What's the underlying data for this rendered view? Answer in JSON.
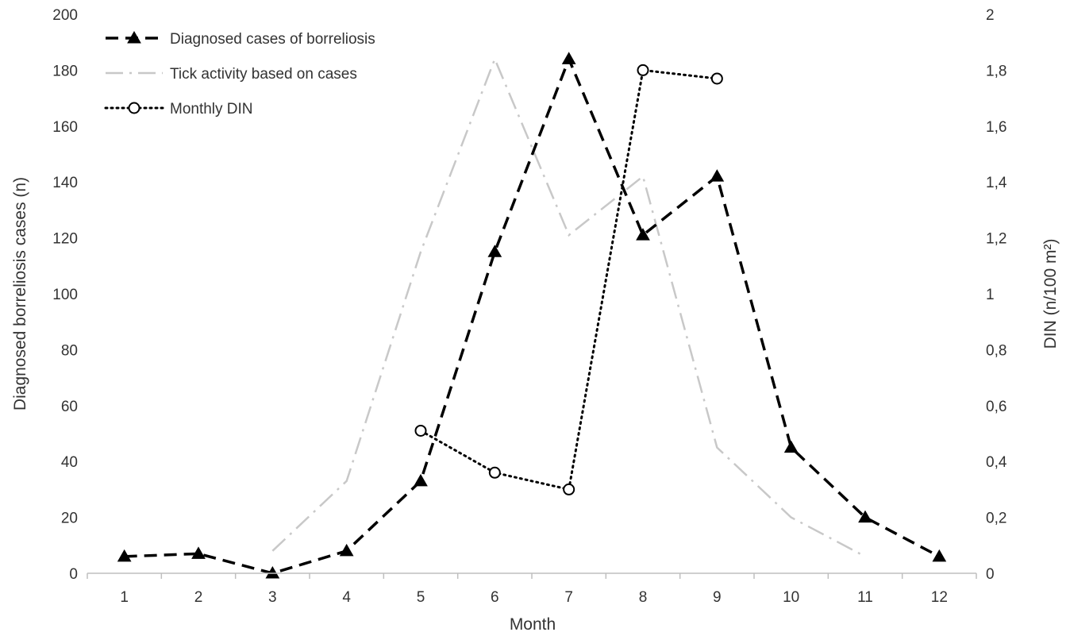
{
  "chart_data": {
    "type": "line",
    "title": "",
    "xlabel": "Month",
    "ylabel_left": "Diagnosed borreliosis cases (n)",
    "ylabel_right": "DIN (n/100 m²)",
    "categories": [
      "1",
      "2",
      "3",
      "4",
      "5",
      "6",
      "7",
      "8",
      "9",
      "10",
      "11",
      "12"
    ],
    "ylim_left": [
      0,
      200
    ],
    "ylim_right": [
      0,
      2
    ],
    "yticks_left": [
      "0",
      "20",
      "40",
      "60",
      "80",
      "100",
      "120",
      "140",
      "160",
      "180",
      "200"
    ],
    "yticks_right": [
      "0",
      "0,2",
      "0,4",
      "0,6",
      "0,8",
      "1",
      "1,2",
      "1,4",
      "1,6",
      "1,8",
      "2"
    ],
    "grid": false,
    "legend_position": "top-left",
    "series": [
      {
        "name": "Diagnosed cases of borreliosis",
        "axis": "left",
        "color": "#000000",
        "style": "dashed",
        "marker": "triangle",
        "x": [
          1,
          2,
          3,
          4,
          5,
          6,
          7,
          8,
          9,
          10,
          11,
          12
        ],
        "values": [
          6,
          7,
          0,
          8,
          33,
          115,
          184,
          121,
          142,
          45,
          20,
          6
        ]
      },
      {
        "name": "Tick activity based on cases",
        "axis": "left",
        "color": "#c8c8c8",
        "style": "dash-dot",
        "marker": "none",
        "x": [
          3,
          4,
          5,
          6,
          7,
          8,
          9,
          10,
          11
        ],
        "values": [
          8,
          33,
          115,
          184,
          121,
          142,
          45,
          20,
          6
        ]
      },
      {
        "name": "Monthly DIN",
        "axis": "right",
        "color": "#000000",
        "style": "dotted",
        "marker": "circle",
        "x": [
          5,
          6,
          7,
          8,
          9
        ],
        "values": [
          0.51,
          0.36,
          0.3,
          1.8,
          1.77
        ]
      }
    ]
  }
}
